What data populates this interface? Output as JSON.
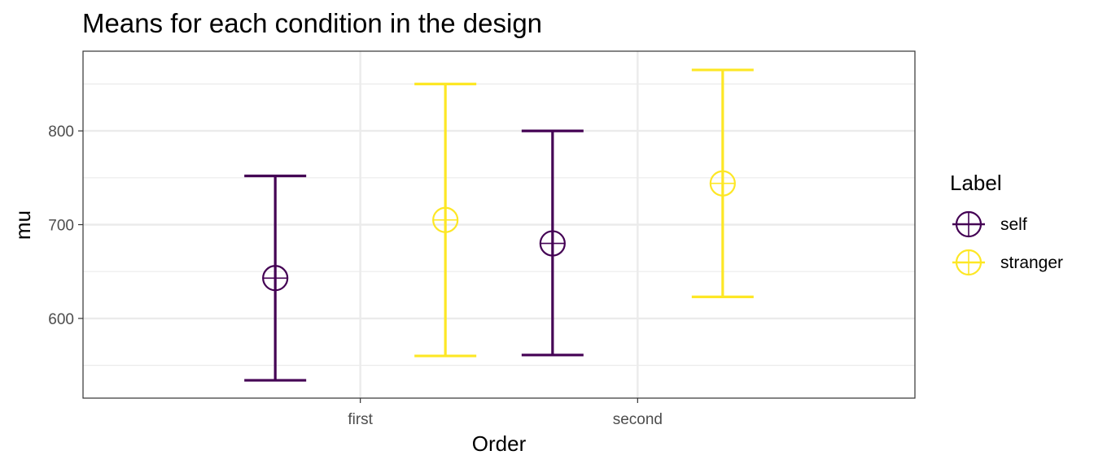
{
  "chart_data": {
    "type": "errorbar",
    "title": "Means for each condition in the design",
    "xlabel": "Order",
    "ylabel": "mu",
    "categories": [
      "first",
      "second"
    ],
    "ylim": [
      515,
      885
    ],
    "yticks": [
      600,
      700,
      800
    ],
    "grid": true,
    "legend": {
      "title": "Label",
      "position": "right"
    },
    "series": [
      {
        "name": "self",
        "color": "#440154",
        "points": [
          {
            "x": "first",
            "mean": 643,
            "lower": 534,
            "upper": 752
          },
          {
            "x": "second",
            "mean": 680,
            "lower": 561,
            "upper": 800
          }
        ]
      },
      {
        "name": "stranger",
        "color": "#FDE725",
        "points": [
          {
            "x": "first",
            "mean": 705,
            "lower": 560,
            "upper": 850
          },
          {
            "x": "second",
            "mean": 744,
            "lower": 623,
            "upper": 865
          }
        ]
      }
    ]
  }
}
